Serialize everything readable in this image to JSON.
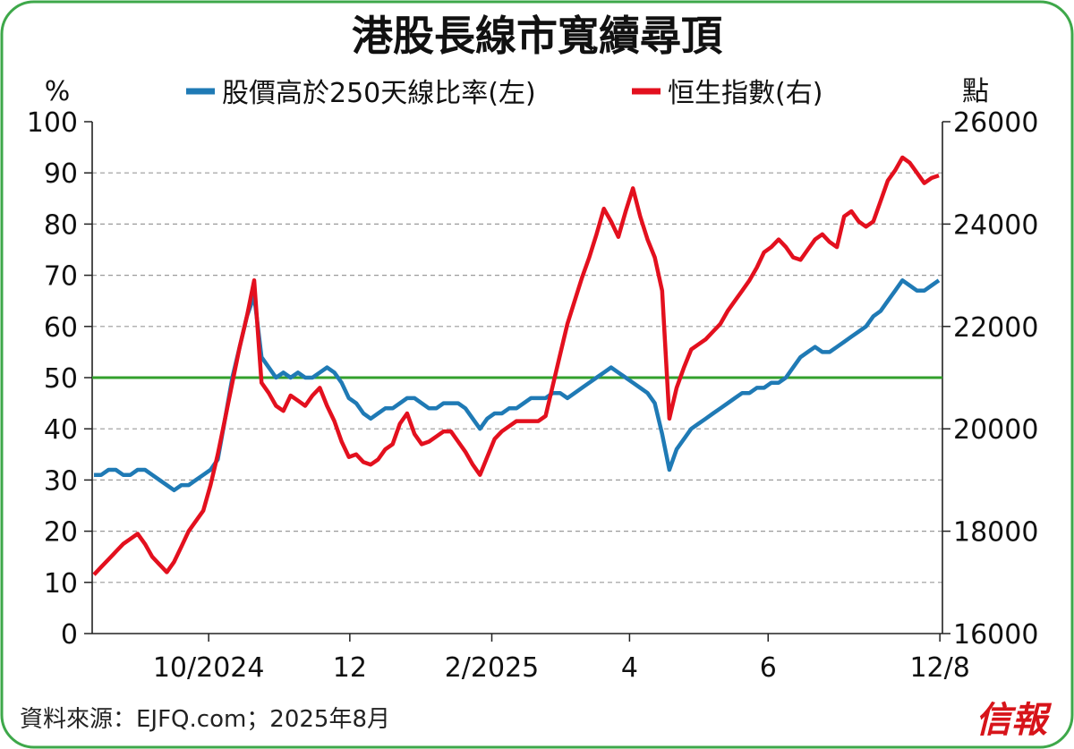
{
  "chart_data": {
    "type": "line",
    "title": "港股長線市寬續尋頂",
    "left_unit": "%",
    "right_unit": "點",
    "y_left": {
      "min": 0,
      "max": 100,
      "ticks": [
        0,
        10,
        20,
        30,
        40,
        50,
        60,
        70,
        80,
        90,
        100
      ]
    },
    "y_right": {
      "min": 16000,
      "max": 26000,
      "ticks": [
        "16000",
        "18000",
        "20000",
        "22000",
        "24000",
        "26000"
      ]
    },
    "x_ticks": [
      "10/2024",
      "12",
      "2/2025",
      "4",
      "6",
      "12/8"
    ],
    "reference_line": {
      "value": 50,
      "axis": "left",
      "color": "#33a02c"
    },
    "grid": "dashed horizontal",
    "legend_position": "top",
    "series": [
      {
        "name": "股價高於250天線比率(左)",
        "axis": "left",
        "color": "#1f7ab5",
        "values": [
          31,
          31,
          32,
          32,
          31,
          31,
          32,
          32,
          31,
          30,
          29,
          28,
          29,
          29,
          30,
          31,
          32,
          34,
          42,
          50,
          56,
          62,
          66,
          54,
          52,
          50,
          51,
          50,
          51,
          50,
          50,
          51,
          52,
          51,
          49,
          46,
          45,
          43,
          42,
          43,
          44,
          44,
          45,
          46,
          46,
          45,
          44,
          44,
          45,
          45,
          45,
          44,
          42,
          40,
          42,
          43,
          43,
          44,
          44,
          45,
          46,
          46,
          46,
          47,
          47,
          46,
          47,
          48,
          49,
          50,
          51,
          52,
          51,
          50,
          49,
          48,
          47,
          45,
          39,
          32,
          36,
          38,
          40,
          41,
          42,
          43,
          44,
          45,
          46,
          47,
          47,
          48,
          48,
          49,
          49,
          50,
          52,
          54,
          55,
          56,
          55,
          55,
          56,
          57,
          58,
          59,
          60,
          62,
          63,
          65,
          67,
          69,
          68,
          67,
          67,
          68,
          69
        ]
      },
      {
        "name": "恒生指數(右)",
        "axis": "right",
        "color": "#e3101e",
        "values": [
          17150,
          17300,
          17450,
          17600,
          17750,
          17850,
          17950,
          17750,
          17500,
          17350,
          17200,
          17400,
          17700,
          18000,
          18200,
          18400,
          18900,
          19500,
          20200,
          20900,
          21600,
          22200,
          22900,
          20900,
          20700,
          20450,
          20350,
          20650,
          20550,
          20450,
          20650,
          20800,
          20450,
          20150,
          19750,
          19450,
          19500,
          19350,
          19300,
          19400,
          19600,
          19700,
          20100,
          20300,
          19900,
          19700,
          19750,
          19850,
          19950,
          19950,
          19750,
          19550,
          19300,
          19100,
          19450,
          19800,
          19950,
          20050,
          20150,
          20150,
          20150,
          20150,
          20250,
          20850,
          21450,
          22050,
          22500,
          22950,
          23350,
          23800,
          24300,
          24050,
          23750,
          24250,
          24700,
          24150,
          23700,
          23350,
          22700,
          20200,
          20800,
          21200,
          21550,
          21650,
          21750,
          21900,
          22050,
          22300,
          22500,
          22700,
          22900,
          23150,
          23450,
          23550,
          23700,
          23550,
          23350,
          23300,
          23500,
          23700,
          23800,
          23650,
          23550,
          24150,
          24250,
          24050,
          23950,
          24050,
          24450,
          24850,
          25050,
          25300,
          25200,
          25000,
          24800,
          24900,
          24950
        ]
      }
    ]
  },
  "labels": {
    "title": "港股長線市寬續尋頂",
    "left_unit": "%",
    "right_unit": "點",
    "legend_1": "股價高於250天線比率(左)",
    "legend_2": "恒生指數(右)",
    "source": "資料來源：EJFQ.com；2025年8月",
    "logo": "信報"
  },
  "colors": {
    "frame": "#3ea84a",
    "blue": "#1f7ab5",
    "red": "#e3101e",
    "ref_line": "#33a02c",
    "grid": "#9a9a9a",
    "logo": "#d7141a"
  }
}
